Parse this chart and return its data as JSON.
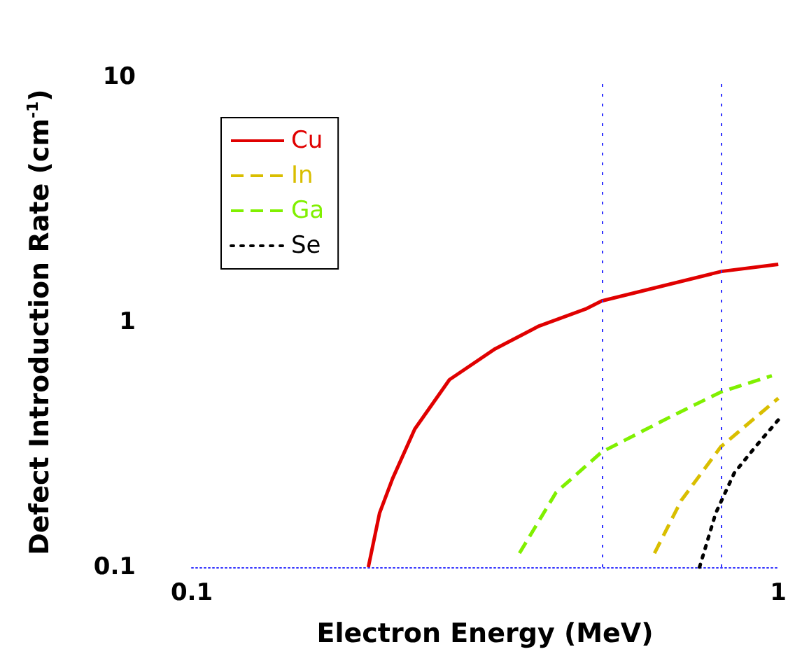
{
  "chart_data": {
    "type": "line",
    "xlabel": "Electron Energy (MeV)",
    "ylabel": "Defect Introduction Rate (cm$^{-1}$)",
    "log": "xy",
    "xlim": [
      0.1,
      1
    ],
    "xticks": [
      0.1,
      1
    ],
    "ylim": [
      0.1,
      10
    ],
    "yticks": [
      0.1,
      1,
      10
    ],
    "grid": false,
    "legend": "top left",
    "marker": "none",
    "series": [
      {
        "name": "Cu",
        "color": "#e00000",
        "line_style": "solid",
        "x": [
          0.2,
          0.209,
          0.22,
          0.24,
          0.275,
          0.329,
          0.391,
          0.469,
          0.5,
          0.8,
          1
        ],
        "values": [
          0.1,
          0.166,
          0.23,
          0.366,
          0.582,
          0.778,
          0.964,
          1.13,
          1.22,
          1.61,
          1.72
        ]
      },
      {
        "name": "In",
        "color": "#d9be00",
        "line_style": "dashed",
        "x": [
          0.615,
          0.683,
          0.798,
          1
        ],
        "values": [
          0.114,
          0.187,
          0.31,
          0.489
        ]
      },
      {
        "name": "Ga",
        "color": "#80f000",
        "line_style": "dashed",
        "x": [
          0.362,
          0.418,
          0.5,
          0.659,
          0.8,
          0.975
        ],
        "values": [
          0.114,
          0.202,
          0.295,
          0.414,
          0.52,
          0.604
        ]
      },
      {
        "name": "Se",
        "color": "#000000",
        "line_style": "dotted",
        "x": [
          0.734,
          0.782,
          0.841,
          0.914,
          1
        ],
        "values": [
          0.1,
          0.166,
          0.242,
          0.31,
          0.399
        ]
      }
    ],
    "ref_lines": [
      {
        "axis": "x",
        "value": 0.5,
        "color": "#3333ff",
        "line_style": "dotted"
      },
      {
        "axis": "x",
        "value": 0.8,
        "color": "#3333ff",
        "line_style": "dotted"
      }
    ]
  }
}
